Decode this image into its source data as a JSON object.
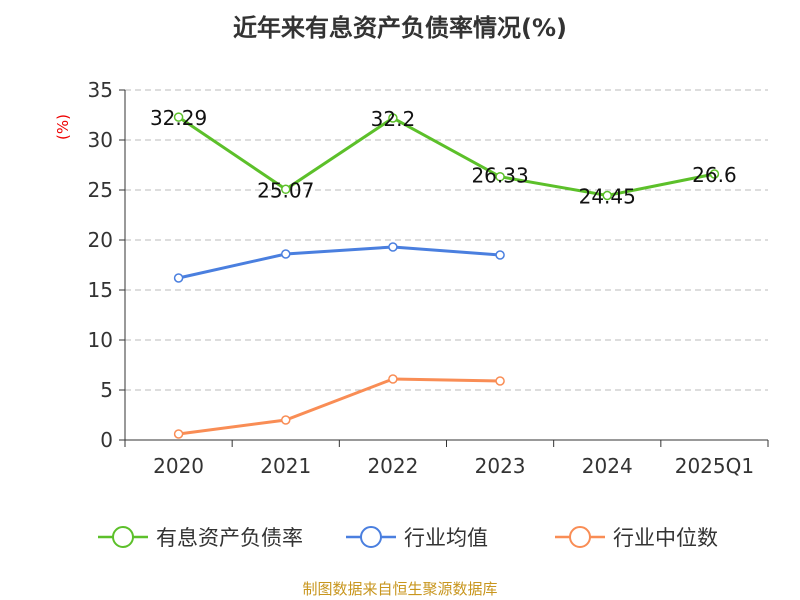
{
  "chart_data": {
    "type": "line",
    "title": "近年来有息资产负债率情况(%)",
    "ylabel": "(%)",
    "xlabel": "",
    "categories": [
      "2020",
      "2021",
      "2022",
      "2023",
      "2024",
      "2025Q1"
    ],
    "ylim": [
      0,
      35
    ],
    "yticks": [
      0,
      5,
      10,
      15,
      20,
      25,
      30,
      35
    ],
    "grid": true,
    "legend_position": "bottom",
    "series": [
      {
        "name": "有息资产负债率",
        "color": "#5cc02a",
        "values": [
          32.29,
          25.07,
          32.2,
          26.33,
          24.45,
          26.6
        ],
        "labels": [
          "32.29",
          "25.07",
          "32.2",
          "26.33",
          "24.45",
          "26.6"
        ]
      },
      {
        "name": "行业均值",
        "color": "#4a7fdf",
        "values": [
          16.2,
          18.6,
          19.3,
          18.5,
          null,
          null
        ]
      },
      {
        "name": "行业中位数",
        "color": "#f98d55",
        "values": [
          0.6,
          2.0,
          6.1,
          5.9,
          null,
          null
        ]
      }
    ]
  },
  "source": "制图数据来自恒生聚源数据库"
}
